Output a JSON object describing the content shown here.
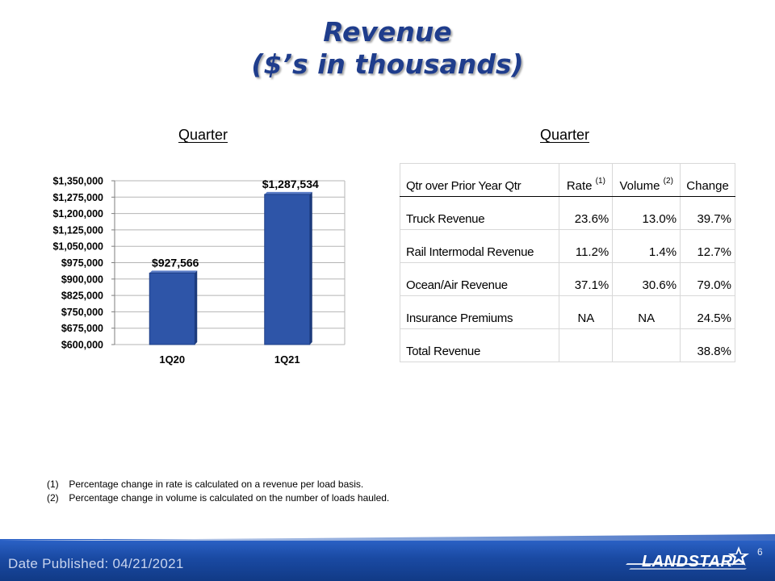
{
  "slide": {
    "title_line1": "Revenue",
    "title_line2": "($’s in thousands)",
    "page_number": "6",
    "date_published": "Date Published:  04/21/2021",
    "logo_text": "LANDSTAR"
  },
  "left_section": {
    "heading": "Quarter"
  },
  "right_section": {
    "heading": "Quarter"
  },
  "chart_data": {
    "type": "bar",
    "categories": [
      "1Q20",
      "1Q21"
    ],
    "values": [
      927566,
      1287534
    ],
    "data_labels": [
      "$927,566",
      "$1,287,534"
    ],
    "ylim": [
      600000,
      1350000
    ],
    "yticks": [
      {
        "value": 600000,
        "label": "$600,000"
      },
      {
        "value": 675000,
        "label": "$675,000"
      },
      {
        "value": 750000,
        "label": "$750,000"
      },
      {
        "value": 825000,
        "label": "$825,000"
      },
      {
        "value": 900000,
        "label": "$900,000"
      },
      {
        "value": 975000,
        "label": "$975,000"
      },
      {
        "value": 1050000,
        "label": "$1,050,000"
      },
      {
        "value": 1125000,
        "label": "$1,125,000"
      },
      {
        "value": 1200000,
        "label": "$1,200,000"
      },
      {
        "value": 1275000,
        "label": "$1,275,000"
      },
      {
        "value": 1350000,
        "label": "$1,350,000"
      }
    ],
    "grid": true,
    "bar_color": "#2e55a8"
  },
  "table": {
    "header": {
      "label": "Qtr over Prior Year Qtr",
      "rate": "Rate",
      "rate_note": "(1)",
      "volume": "Volume",
      "volume_note": "(2)",
      "change": "Change"
    },
    "rows": [
      {
        "label": "Truck Revenue",
        "rate": "23.6%",
        "volume": "13.0%",
        "change": "39.7%"
      },
      {
        "label": "Rail Intermodal Revenue",
        "rate": "11.2%",
        "volume": "1.4%",
        "change": "12.7%"
      },
      {
        "label": "Ocean/Air Revenue",
        "rate": "37.1%",
        "volume": "30.6%",
        "change": "79.0%"
      },
      {
        "label": "Insurance Premiums",
        "rate": "NA",
        "volume": "NA",
        "change": "24.5%"
      },
      {
        "label": "Total Revenue",
        "rate": "",
        "volume": "",
        "change": "38.8%"
      }
    ]
  },
  "footnotes": [
    {
      "num": "(1)",
      "text": "Percentage change in rate is calculated on a revenue per load basis."
    },
    {
      "num": "(2)",
      "text": "Percentage change in volume is calculated on the number of loads hauled."
    }
  ],
  "colors": {
    "title": "#1f3d8c",
    "footer_bar": "#1a4aa3"
  }
}
